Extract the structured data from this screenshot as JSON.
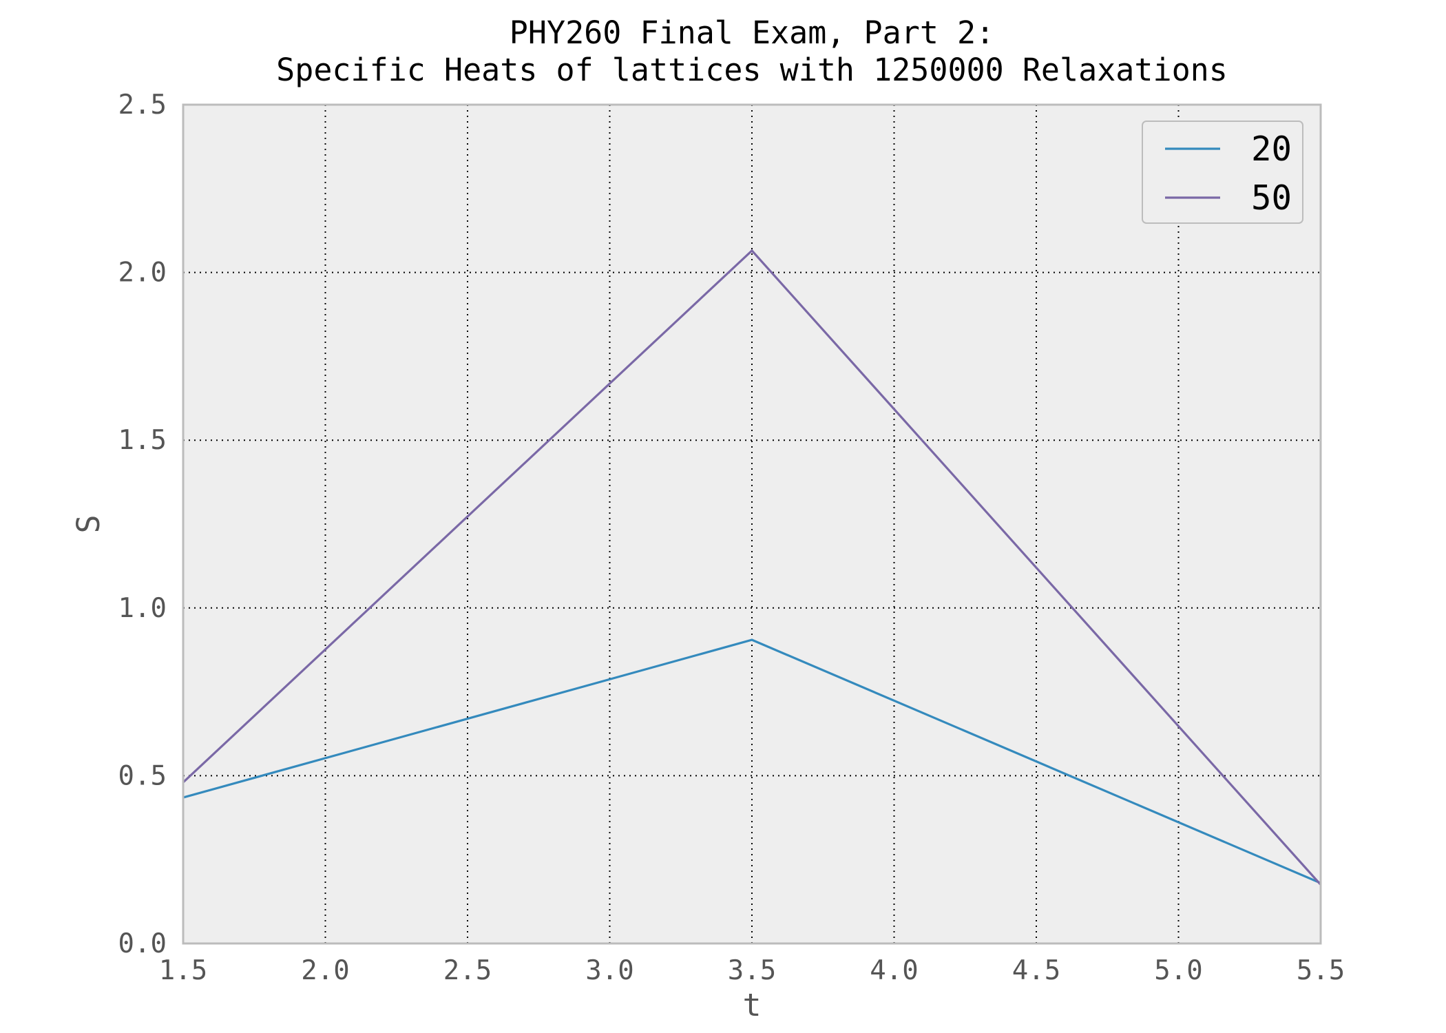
{
  "chart_data": {
    "type": "line",
    "title": [
      "PHY260 Final Exam, Part 2:",
      "Specific Heats of lattices with 1250000 Relaxations"
    ],
    "xlabel": "t",
    "ylabel": "S",
    "xlim": [
      1.5,
      5.5
    ],
    "ylim": [
      0.0,
      2.5
    ],
    "xticks": [
      1.5,
      2.0,
      2.5,
      3.0,
      3.5,
      4.0,
      4.5,
      5.0,
      5.5
    ],
    "yticks": [
      0.0,
      0.5,
      1.0,
      1.5,
      2.0,
      2.5
    ],
    "xtick_labels": [
      "1.5",
      "2.0",
      "2.5",
      "3.0",
      "3.5",
      "4.0",
      "4.5",
      "5.0",
      "5.5"
    ],
    "ytick_labels": [
      "0.0",
      "0.5",
      "1.0",
      "1.5",
      "2.0",
      "2.5"
    ],
    "grid": true,
    "legend_position": "top-right",
    "series": [
      {
        "name": "20",
        "color": "#348abd",
        "x": [
          1.5,
          3.5,
          5.5
        ],
        "y": [
          0.435,
          0.905,
          0.18
        ]
      },
      {
        "name": "50",
        "color": "#7a68a6",
        "x": [
          1.5,
          3.5,
          5.5
        ],
        "y": [
          0.48,
          2.065,
          0.175
        ]
      }
    ],
    "colors": {
      "plot_background": "#eeeeee",
      "frame": "#bcbcbc",
      "grid": "#000000"
    }
  }
}
